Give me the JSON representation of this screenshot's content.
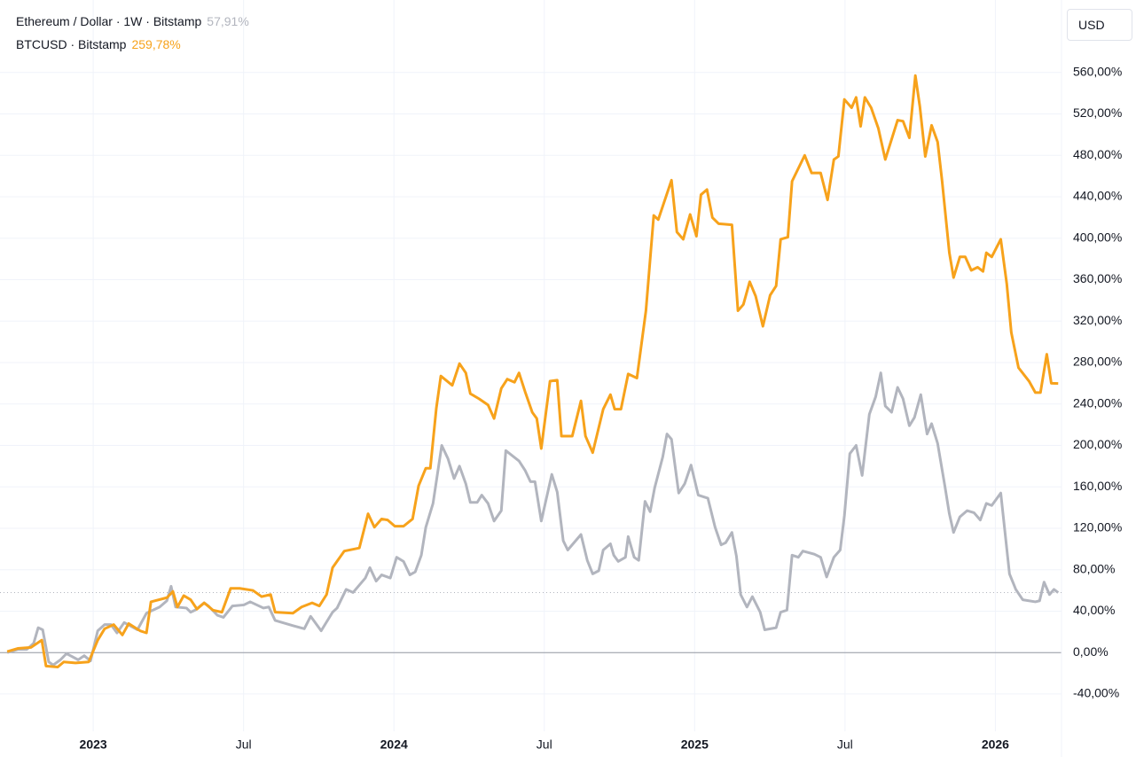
{
  "chart_data": {
    "type": "line",
    "currency": "USD",
    "xlim": [
      2022.69,
      2026.22
    ],
    "ylim": [
      -76,
      630
    ],
    "xticks": [
      2023,
      {
        "value": 2023.5,
        "label": "Jul"
      },
      2024,
      {
        "value": 2024.5,
        "label": "Jul"
      },
      2025,
      {
        "value": 2025.5,
        "label": "Jul"
      },
      2026
    ],
    "yticks": [
      {
        "value": -40,
        "label": "-40,00%"
      },
      {
        "value": 0,
        "label": "0,00%"
      },
      {
        "value": 40,
        "label": "40,00%"
      },
      {
        "value": 80,
        "label": "80,00%"
      },
      {
        "value": 120,
        "label": "120,00%"
      },
      {
        "value": 160,
        "label": "160,00%"
      },
      {
        "value": 200,
        "label": "200,00%"
      },
      {
        "value": 240,
        "label": "240,00%"
      },
      {
        "value": 280,
        "label": "280,00%"
      },
      {
        "value": 320,
        "label": "320,00%"
      },
      {
        "value": 360,
        "label": "360,00%"
      },
      {
        "value": 400,
        "label": "400,00%"
      },
      {
        "value": 440,
        "label": "440,00%"
      },
      {
        "value": 480,
        "label": "480,00%"
      },
      {
        "value": 520,
        "label": "520,00%"
      },
      {
        "value": 560,
        "label": "560,00%"
      }
    ],
    "grid": true,
    "series": [
      {
        "name": "Ethereum / Dollar · 1W · Bitstamp",
        "color": "#b2b5be",
        "last_value": {
          "value": 57.91,
          "label": "57,91%"
        },
        "x": [
          2022.714,
          2022.749,
          2022.779,
          2022.802,
          2022.817,
          2022.832,
          2022.852,
          2022.867,
          2022.891,
          2022.911,
          2022.95,
          2022.97,
          2022.991,
          2023.015,
          2023.038,
          2023.059,
          2023.079,
          2023.103,
          2023.147,
          2023.177,
          2023.221,
          2023.245,
          2023.259,
          2023.274,
          2023.31,
          2023.324,
          2023.339,
          2023.369,
          2023.383,
          2023.413,
          2023.433,
          2023.463,
          2023.501,
          2023.522,
          2023.566,
          2023.584,
          2023.605,
          2023.664,
          2023.702,
          2023.723,
          2023.758,
          2023.796,
          2023.811,
          2023.841,
          2023.864,
          2023.905,
          2023.92,
          2023.941,
          2023.959,
          2023.988,
          2024.009,
          2024.032,
          2024.053,
          2024.071,
          2024.091,
          2024.106,
          2024.13,
          2024.159,
          2024.18,
          2024.2,
          2024.218,
          2024.239,
          2024.254,
          2024.277,
          2024.292,
          2024.313,
          2024.333,
          2024.357,
          2024.372,
          2024.416,
          2024.436,
          2024.454,
          2024.469,
          2024.49,
          2024.525,
          2024.543,
          2024.563,
          2024.578,
          2024.622,
          2024.643,
          2024.661,
          2024.681,
          2024.696,
          2024.72,
          2024.731,
          2024.746,
          2024.77,
          2024.779,
          2024.799,
          2024.814,
          2024.835,
          2024.852,
          2024.867,
          2024.894,
          2024.908,
          2024.923,
          2024.947,
          2024.967,
          2024.988,
          2025.012,
          2025.044,
          2025.068,
          2025.088,
          2025.103,
          2025.124,
          2025.139,
          2025.153,
          2025.174,
          2025.192,
          2025.218,
          2025.233,
          2025.271,
          2025.286,
          2025.307,
          2025.324,
          2025.345,
          2025.36,
          2025.398,
          2025.419,
          2025.439,
          2025.463,
          2025.484,
          2025.498,
          2025.516,
          2025.537,
          2025.557,
          2025.581,
          2025.602,
          2025.619,
          2025.634,
          2025.655,
          2025.675,
          2025.693,
          2025.714,
          2025.731,
          2025.752,
          2025.773,
          2025.788,
          2025.808,
          2025.832,
          2025.847,
          2025.861,
          2025.882,
          2025.906,
          2025.929,
          2025.95,
          2025.97,
          2025.988,
          2026.018,
          2026.047,
          2026.068,
          2026.091,
          2026.133,
          2026.147,
          2026.162,
          2026.18,
          2026.195,
          2026.209
        ],
        "values": [
          0,
          3,
          3,
          9,
          24,
          22,
          -9,
          -12,
          -7,
          -1,
          -7,
          -3,
          -8,
          21,
          27,
          27,
          19,
          29,
          22,
          38,
          44,
          50,
          64,
          44,
          43,
          39,
          41,
          48,
          45,
          36,
          34,
          45,
          46,
          49,
          43,
          44,
          31,
          26,
          23,
          35,
          21,
          39,
          43,
          61,
          58,
          72,
          82,
          69,
          75,
          72,
          92,
          88,
          75,
          78,
          94,
          121,
          144,
          200,
          187,
          168,
          180,
          163,
          145,
          145,
          152,
          144,
          127,
          137,
          195,
          185,
          176,
          165,
          165,
          127,
          172,
          155,
          108,
          99,
          114,
          89,
          76,
          79,
          99,
          105,
          94,
          88,
          92,
          112,
          92,
          89,
          146,
          136,
          159,
          189,
          211,
          206,
          154,
          163,
          181,
          152,
          149,
          121,
          104,
          106,
          116,
          93,
          56,
          44,
          54,
          39,
          22,
          24,
          39,
          41,
          94,
          92,
          98,
          95,
          92,
          73,
          92,
          99,
          132,
          192,
          200,
          171,
          230,
          247,
          270,
          238,
          232,
          256,
          245,
          219,
          227,
          249,
          211,
          221,
          202,
          161,
          134,
          116,
          131,
          137,
          135,
          128,
          144,
          142,
          154,
          76,
          61,
          51,
          49,
          50,
          68,
          56,
          61,
          57.91
        ]
      },
      {
        "name": "BTCUSD · Bitstamp",
        "color": "#f7a21b",
        "last_value": {
          "value": 259.78,
          "label": "259,78%"
        },
        "x": [
          2022.714,
          2022.749,
          2022.793,
          2022.829,
          2022.843,
          2022.882,
          2022.902,
          2022.941,
          2022.985,
          2023.015,
          2023.038,
          2023.068,
          2023.097,
          2023.118,
          2023.156,
          2023.177,
          2023.192,
          2023.245,
          2023.265,
          2023.28,
          2023.301,
          2023.324,
          2023.345,
          2023.369,
          2023.398,
          2023.428,
          2023.457,
          2023.487,
          2023.531,
          2023.56,
          2023.59,
          2023.605,
          2023.664,
          2023.693,
          2023.728,
          2023.752,
          2023.776,
          2023.796,
          2023.835,
          2023.885,
          2023.914,
          2023.935,
          2023.959,
          2023.979,
          2024.003,
          2024.032,
          2024.062,
          2024.082,
          2024.106,
          2024.121,
          2024.141,
          2024.156,
          2024.194,
          2024.218,
          2024.239,
          2024.254,
          2024.283,
          2024.313,
          2024.333,
          2024.357,
          2024.377,
          2024.401,
          2024.416,
          2024.436,
          2024.46,
          2024.475,
          2024.49,
          2024.519,
          2024.543,
          2024.557,
          2024.593,
          2024.622,
          2024.637,
          2024.661,
          2024.696,
          2024.72,
          2024.734,
          2024.755,
          2024.779,
          2024.808,
          2024.838,
          2024.864,
          2024.879,
          2024.923,
          2024.941,
          2024.962,
          2024.985,
          2025.006,
          2025.021,
          2025.041,
          2025.059,
          2025.08,
          2025.124,
          2025.144,
          2025.162,
          2025.183,
          2025.203,
          2025.227,
          2025.251,
          2025.271,
          2025.286,
          2025.31,
          2025.324,
          2025.366,
          2025.389,
          2025.419,
          2025.442,
          2025.463,
          2025.478,
          2025.498,
          2025.522,
          2025.537,
          2025.552,
          2025.566,
          2025.587,
          2025.611,
          2025.634,
          2025.675,
          2025.693,
          2025.714,
          2025.734,
          2025.749,
          2025.767,
          2025.788,
          2025.808,
          2025.823,
          2025.847,
          2025.861,
          2025.882,
          2025.9,
          2025.92,
          2025.941,
          2025.959,
          2025.97,
          2025.988,
          2026.018,
          2026.038,
          2026.053,
          2026.077,
          2026.112,
          2026.133,
          2026.15,
          2026.171,
          2026.186,
          2026.209
        ],
        "values": [
          1,
          4,
          5,
          12,
          -13,
          -14,
          -9,
          -10,
          -9,
          12,
          23,
          27,
          17,
          28,
          21,
          19,
          49,
          53,
          59,
          44,
          55,
          51,
          42,
          48,
          41,
          39,
          62,
          62,
          60,
          54,
          56,
          39,
          38,
          44,
          48,
          45,
          56,
          82,
          98,
          101,
          134,
          121,
          129,
          128,
          122,
          122,
          129,
          161,
          178,
          178,
          236,
          267,
          258,
          279,
          270,
          250,
          245,
          239,
          226,
          255,
          264,
          261,
          270,
          252,
          232,
          226,
          197,
          262,
          263,
          209,
          209,
          243,
          209,
          193,
          235,
          249,
          235,
          235,
          269,
          265,
          330,
          422,
          418,
          456,
          406,
          399,
          423,
          402,
          442,
          447,
          420,
          414,
          413,
          330,
          336,
          358,
          344,
          315,
          345,
          354,
          399,
          401,
          455,
          480,
          463,
          463,
          437,
          476,
          479,
          534,
          526,
          536,
          508,
          536,
          526,
          506,
          476,
          514,
          513,
          497,
          557,
          527,
          479,
          509,
          493,
          455,
          386,
          362,
          382,
          382,
          369,
          372,
          368,
          386,
          382,
          399,
          356,
          309,
          275,
          262,
          251,
          251,
          288,
          260,
          259.78
        ]
      }
    ]
  }
}
